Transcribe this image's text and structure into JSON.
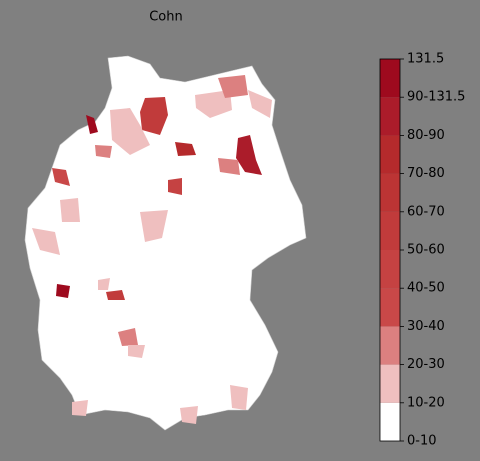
{
  "title": "Cohn",
  "legend": {
    "labels": [
      "0-10",
      "10-20",
      "20-30",
      "30-40",
      "40-50",
      "50-60",
      "60-70",
      "70-80",
      "80-90",
      "90-131.5",
      "131.5"
    ],
    "colors": [
      "#ffffff",
      "#efbfbf",
      "#dc8080",
      "#c94848",
      "#c54242",
      "#c13b3b",
      "#bc3434",
      "#b52a2c",
      "#ab1c2a",
      "#9e0a1e"
    ]
  }
}
